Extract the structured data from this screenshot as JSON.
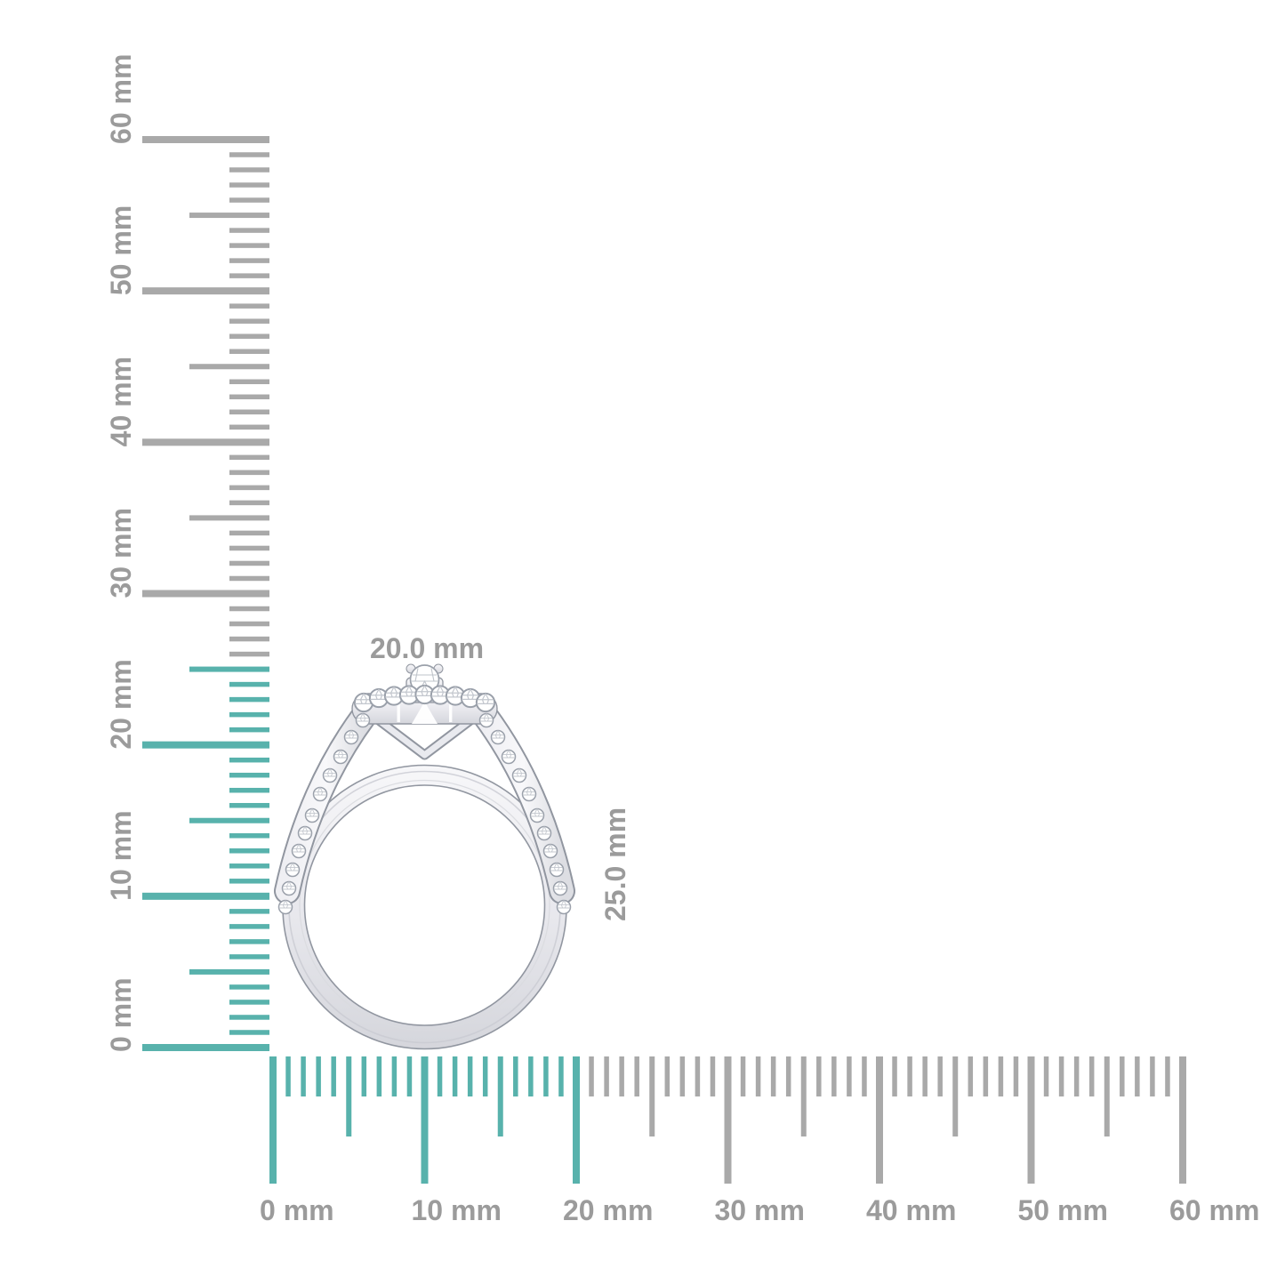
{
  "scene": {
    "description": "Halo diamond ring shown in side profile against measuring rulers",
    "background_color": "#ffffff"
  },
  "measurements": {
    "width_label": "20.0 mm",
    "height_label": "25.0 mm"
  },
  "rulers": {
    "unit": "mm",
    "colors": {
      "tick_normal": "#a9a9a9",
      "tick_highlight": "#58b2ac",
      "label": "#9b9b9b"
    },
    "vertical": {
      "min_mm": 0,
      "max_mm": 60,
      "label_step_mm": 10,
      "highlight_to_mm": 25,
      "labels": [
        "0 mm",
        "10 mm",
        "20 mm",
        "30 mm",
        "40 mm",
        "50 mm",
        "60 mm"
      ]
    },
    "horizontal": {
      "min_mm": 0,
      "max_mm": 60,
      "label_step_mm": 10,
      "highlight_to_mm": 20,
      "labels": [
        "0 mm",
        "10 mm",
        "20 mm",
        "30 mm",
        "40 mm",
        "50 mm",
        "60 mm"
      ]
    }
  }
}
